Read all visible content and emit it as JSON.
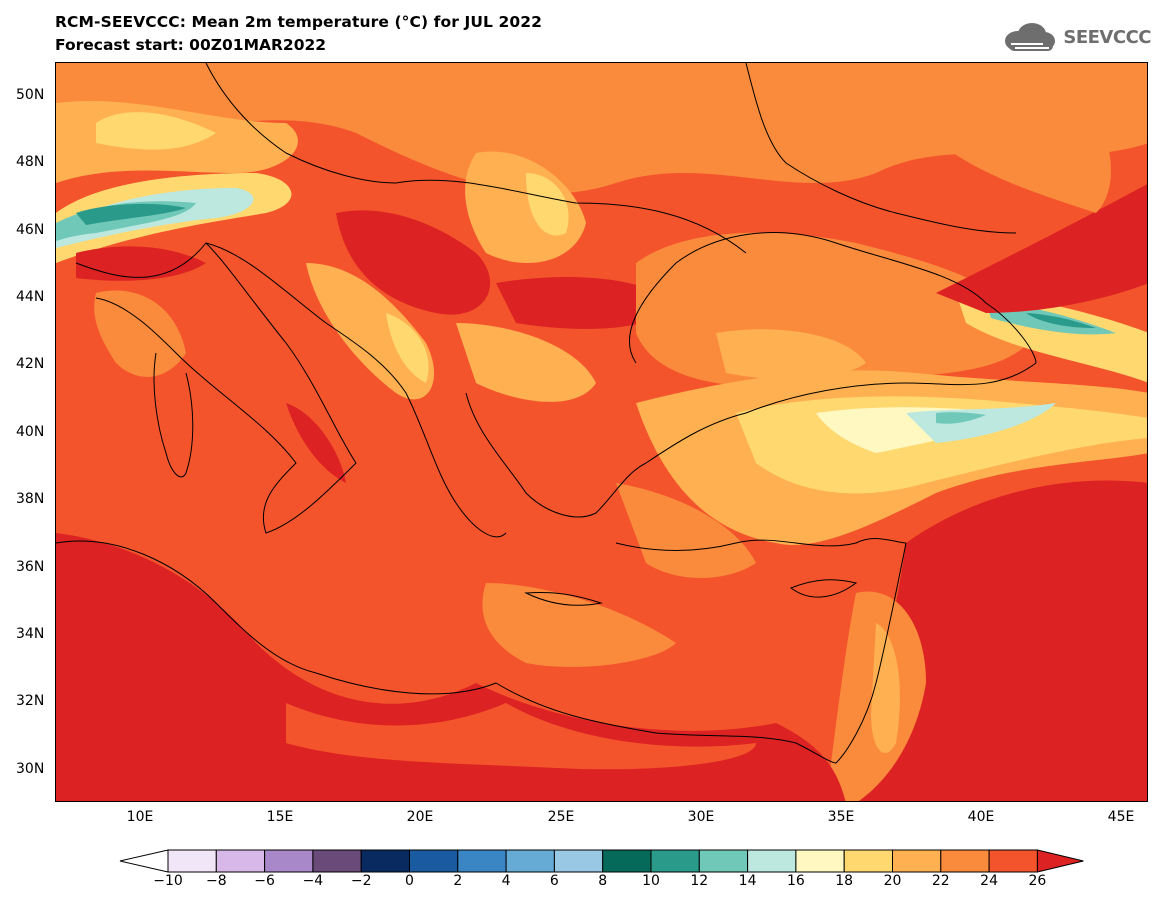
{
  "header": {
    "title": "RCM-SEEVCCC: Mean 2m temperature (°C) for JUL 2022",
    "subtitle": "Forecast start: 00Z01MAR2022",
    "logo_text": "SEEVCCC",
    "logo_icon": "cloud-icon"
  },
  "map": {
    "variable": "Mean 2m temperature",
    "units": "°C",
    "period": "JUL 2022",
    "lon_range": [
      7,
      46
    ],
    "lat_range": [
      29,
      51
    ],
    "lat_labels": [
      "50N",
      "48N",
      "46N",
      "44N",
      "42N",
      "40N",
      "38N",
      "36N",
      "34N",
      "32N",
      "30N"
    ],
    "lon_labels": [
      "10E",
      "15E",
      "20E",
      "25E",
      "30E",
      "35E",
      "40E",
      "45E"
    ]
  },
  "colorbar": {
    "labels": [
      "−10",
      "−8",
      "−6",
      "−4",
      "−2",
      "0",
      "2",
      "4",
      "6",
      "8",
      "10",
      "12",
      "14",
      "16",
      "18",
      "20",
      "22",
      "24",
      "26"
    ],
    "colors": [
      "#ffffff",
      "#f0e6f8",
      "#d8b8e8",
      "#a888c8",
      "#6a4a78",
      "#082a60",
      "#1a5aa0",
      "#3a86c4",
      "#66aad6",
      "#98c8e4",
      "#066a5a",
      "#2a9a8a",
      "#70c8b8",
      "#bce8e0",
      "#fff8c0",
      "#ffd870",
      "#ffb050",
      "#fa8a3c",
      "#f4542c",
      "#dc2222"
    ],
    "extend": "both"
  }
}
